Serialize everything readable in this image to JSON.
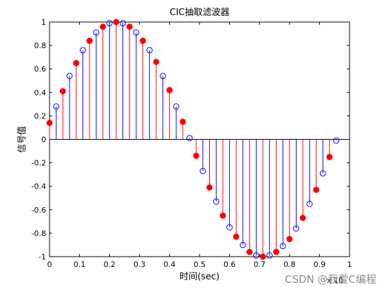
{
  "chart_data": {
    "type": "stem",
    "title": "CIC抽取滤波器",
    "xlabel": "时间(sec)",
    "ylabel": "信号值",
    "x_exponent_label": "x 10",
    "xlim": [
      0,
      1
    ],
    "ylim": [
      -1,
      1
    ],
    "xticks": [
      "0",
      "0.1",
      "0.2",
      "0.3",
      "0.4",
      "0.5",
      "0.6",
      "0.7",
      "0.8",
      "0.9",
      "1"
    ],
    "yticks": [
      "-1",
      "-0.8",
      "-0.6",
      "-0.4",
      "-0.2",
      "0",
      "0.2",
      "0.4",
      "0.6",
      "0.8",
      "1"
    ],
    "colors": {
      "original": "#0000ff",
      "decimated": "#ff0000"
    },
    "series": [
      {
        "marker": "open-circle",
        "x": [
          0.0222,
          0.0667,
          0.1111,
          0.1556,
          0.2,
          0.2444,
          0.2889,
          0.3333,
          0.3778,
          0.4222,
          0.4667,
          0.5111,
          0.5556,
          0.6,
          0.6444,
          0.6889,
          0.7333,
          0.7778,
          0.8222,
          0.8667,
          0.9111,
          0.9556
        ],
        "values": [
          0.28,
          0.54,
          0.76,
          0.91,
          0.99,
          0.99,
          0.91,
          0.76,
          0.54,
          0.28,
          0.01,
          -0.27,
          -0.53,
          -0.75,
          -0.9,
          -0.99,
          -0.99,
          -0.91,
          -0.76,
          -0.55,
          -0.29,
          -0.01
        ]
      },
      {
        "marker": "filled-circle",
        "x": [
          0.0,
          0.0444,
          0.0889,
          0.1333,
          0.1778,
          0.2222,
          0.2667,
          0.3111,
          0.3556,
          0.4,
          0.4444,
          0.4889,
          0.5333,
          0.5778,
          0.6222,
          0.6667,
          0.7111,
          0.7556,
          0.8,
          0.8444,
          0.8889,
          0.9333
        ],
        "values": [
          0.14,
          0.41,
          0.65,
          0.84,
          0.96,
          1.0,
          0.96,
          0.84,
          0.66,
          0.42,
          0.15,
          -0.14,
          -0.41,
          -0.65,
          -0.83,
          -0.96,
          -1.0,
          -0.96,
          -0.85,
          -0.67,
          -0.43,
          -0.15
        ]
      }
    ]
  },
  "watermark": "CSDN @我爱C编程"
}
